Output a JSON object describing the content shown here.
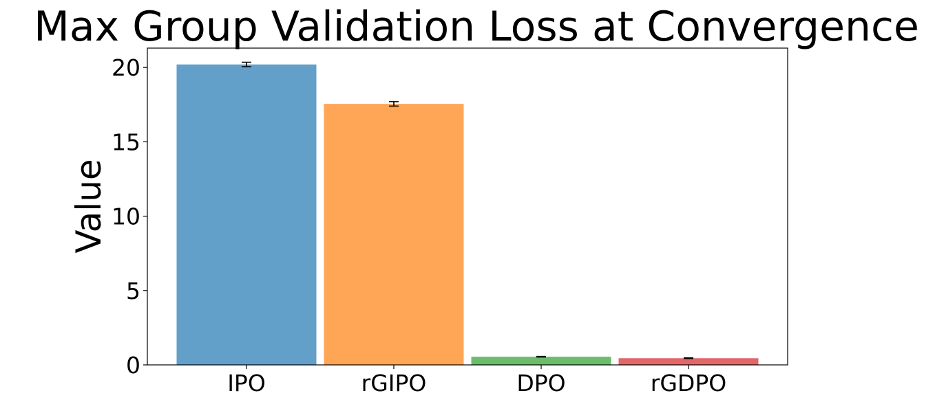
{
  "chart_data": {
    "type": "bar",
    "title": "Max Group Validation Loss at Convergence",
    "xlabel": "",
    "ylabel": "Value",
    "categories": [
      "IPO",
      "rGIPO",
      "DPO",
      "rGDPO"
    ],
    "values": [
      20.2,
      17.55,
      0.55,
      0.45
    ],
    "errors": [
      0.15,
      0.15,
      0.02,
      0.02
    ],
    "colors": [
      "#1f77b4",
      "#ff7f0e",
      "#2ca02c",
      "#d62728"
    ],
    "bar_opacity": 0.7,
    "ylim": [
      0,
      21.3
    ],
    "yticks": [
      0,
      5,
      10,
      15,
      20
    ],
    "ytick_labels": [
      "0",
      "5",
      "10",
      "15",
      "20"
    ],
    "grid": false,
    "legend": "none"
  }
}
